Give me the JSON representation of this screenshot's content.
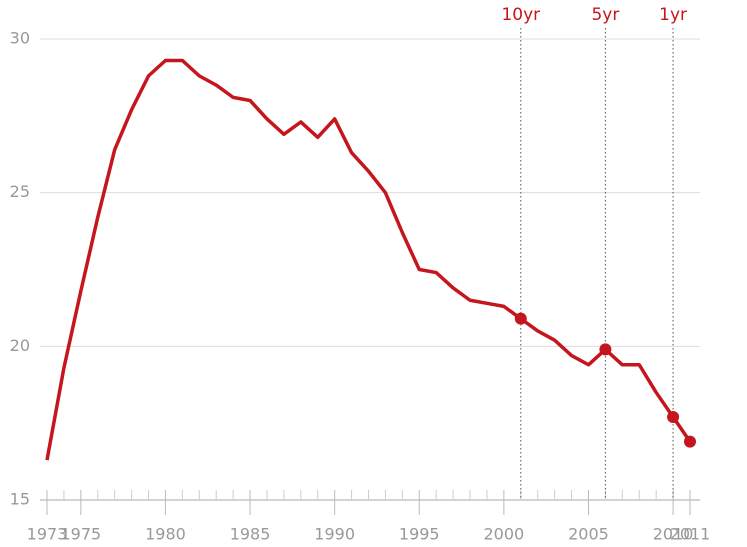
{
  "chart_data": {
    "type": "line",
    "x": [
      1973,
      1974,
      1975,
      1976,
      1977,
      1978,
      1979,
      1980,
      1981,
      1982,
      1983,
      1984,
      1985,
      1986,
      1987,
      1988,
      1989,
      1990,
      1991,
      1992,
      1993,
      1994,
      1995,
      1996,
      1997,
      1998,
      1999,
      2000,
      2001,
      2002,
      2003,
      2004,
      2005,
      2006,
      2007,
      2008,
      2009,
      2010,
      2011
    ],
    "series": [
      {
        "color": "#c4161c",
        "values": [
          16.3,
          19.3,
          21.8,
          24.2,
          26.4,
          27.7,
          28.8,
          29.3,
          29.3,
          28.8,
          28.5,
          28.1,
          28.0,
          27.4,
          26.9,
          27.3,
          26.8,
          27.4,
          26.3,
          25.7,
          25.0,
          23.7,
          22.5,
          22.4,
          21.9,
          21.5,
          21.4,
          21.3,
          20.9,
          20.5,
          20.2,
          19.7,
          19.4,
          19.9,
          19.4,
          19.4,
          18.5,
          17.7,
          16.9
        ]
      }
    ],
    "markers": [
      2001,
      2006,
      2010,
      2011
    ],
    "annotations": [
      {
        "x": 2001,
        "label": "10yr"
      },
      {
        "x": 2006,
        "label": "5yr"
      },
      {
        "x": 2010,
        "label": "1yr"
      }
    ],
    "xlim": [
      1973,
      2011
    ],
    "ylim": [
      15,
      30
    ],
    "xticks": [
      1973,
      1975,
      1980,
      1985,
      1990,
      1995,
      2000,
      2005,
      2010,
      2011
    ],
    "xminorticks": [
      1974,
      1976,
      1977,
      1978,
      1979,
      1981,
      1982,
      1983,
      1984,
      1986,
      1987,
      1988,
      1989,
      1991,
      1992,
      1993,
      1994,
      1996,
      1997,
      1998,
      1999,
      2001,
      2002,
      2003,
      2004,
      2006,
      2007,
      2008,
      2009
    ],
    "yticks": [
      15,
      20,
      25,
      30
    ],
    "grid": true
  }
}
